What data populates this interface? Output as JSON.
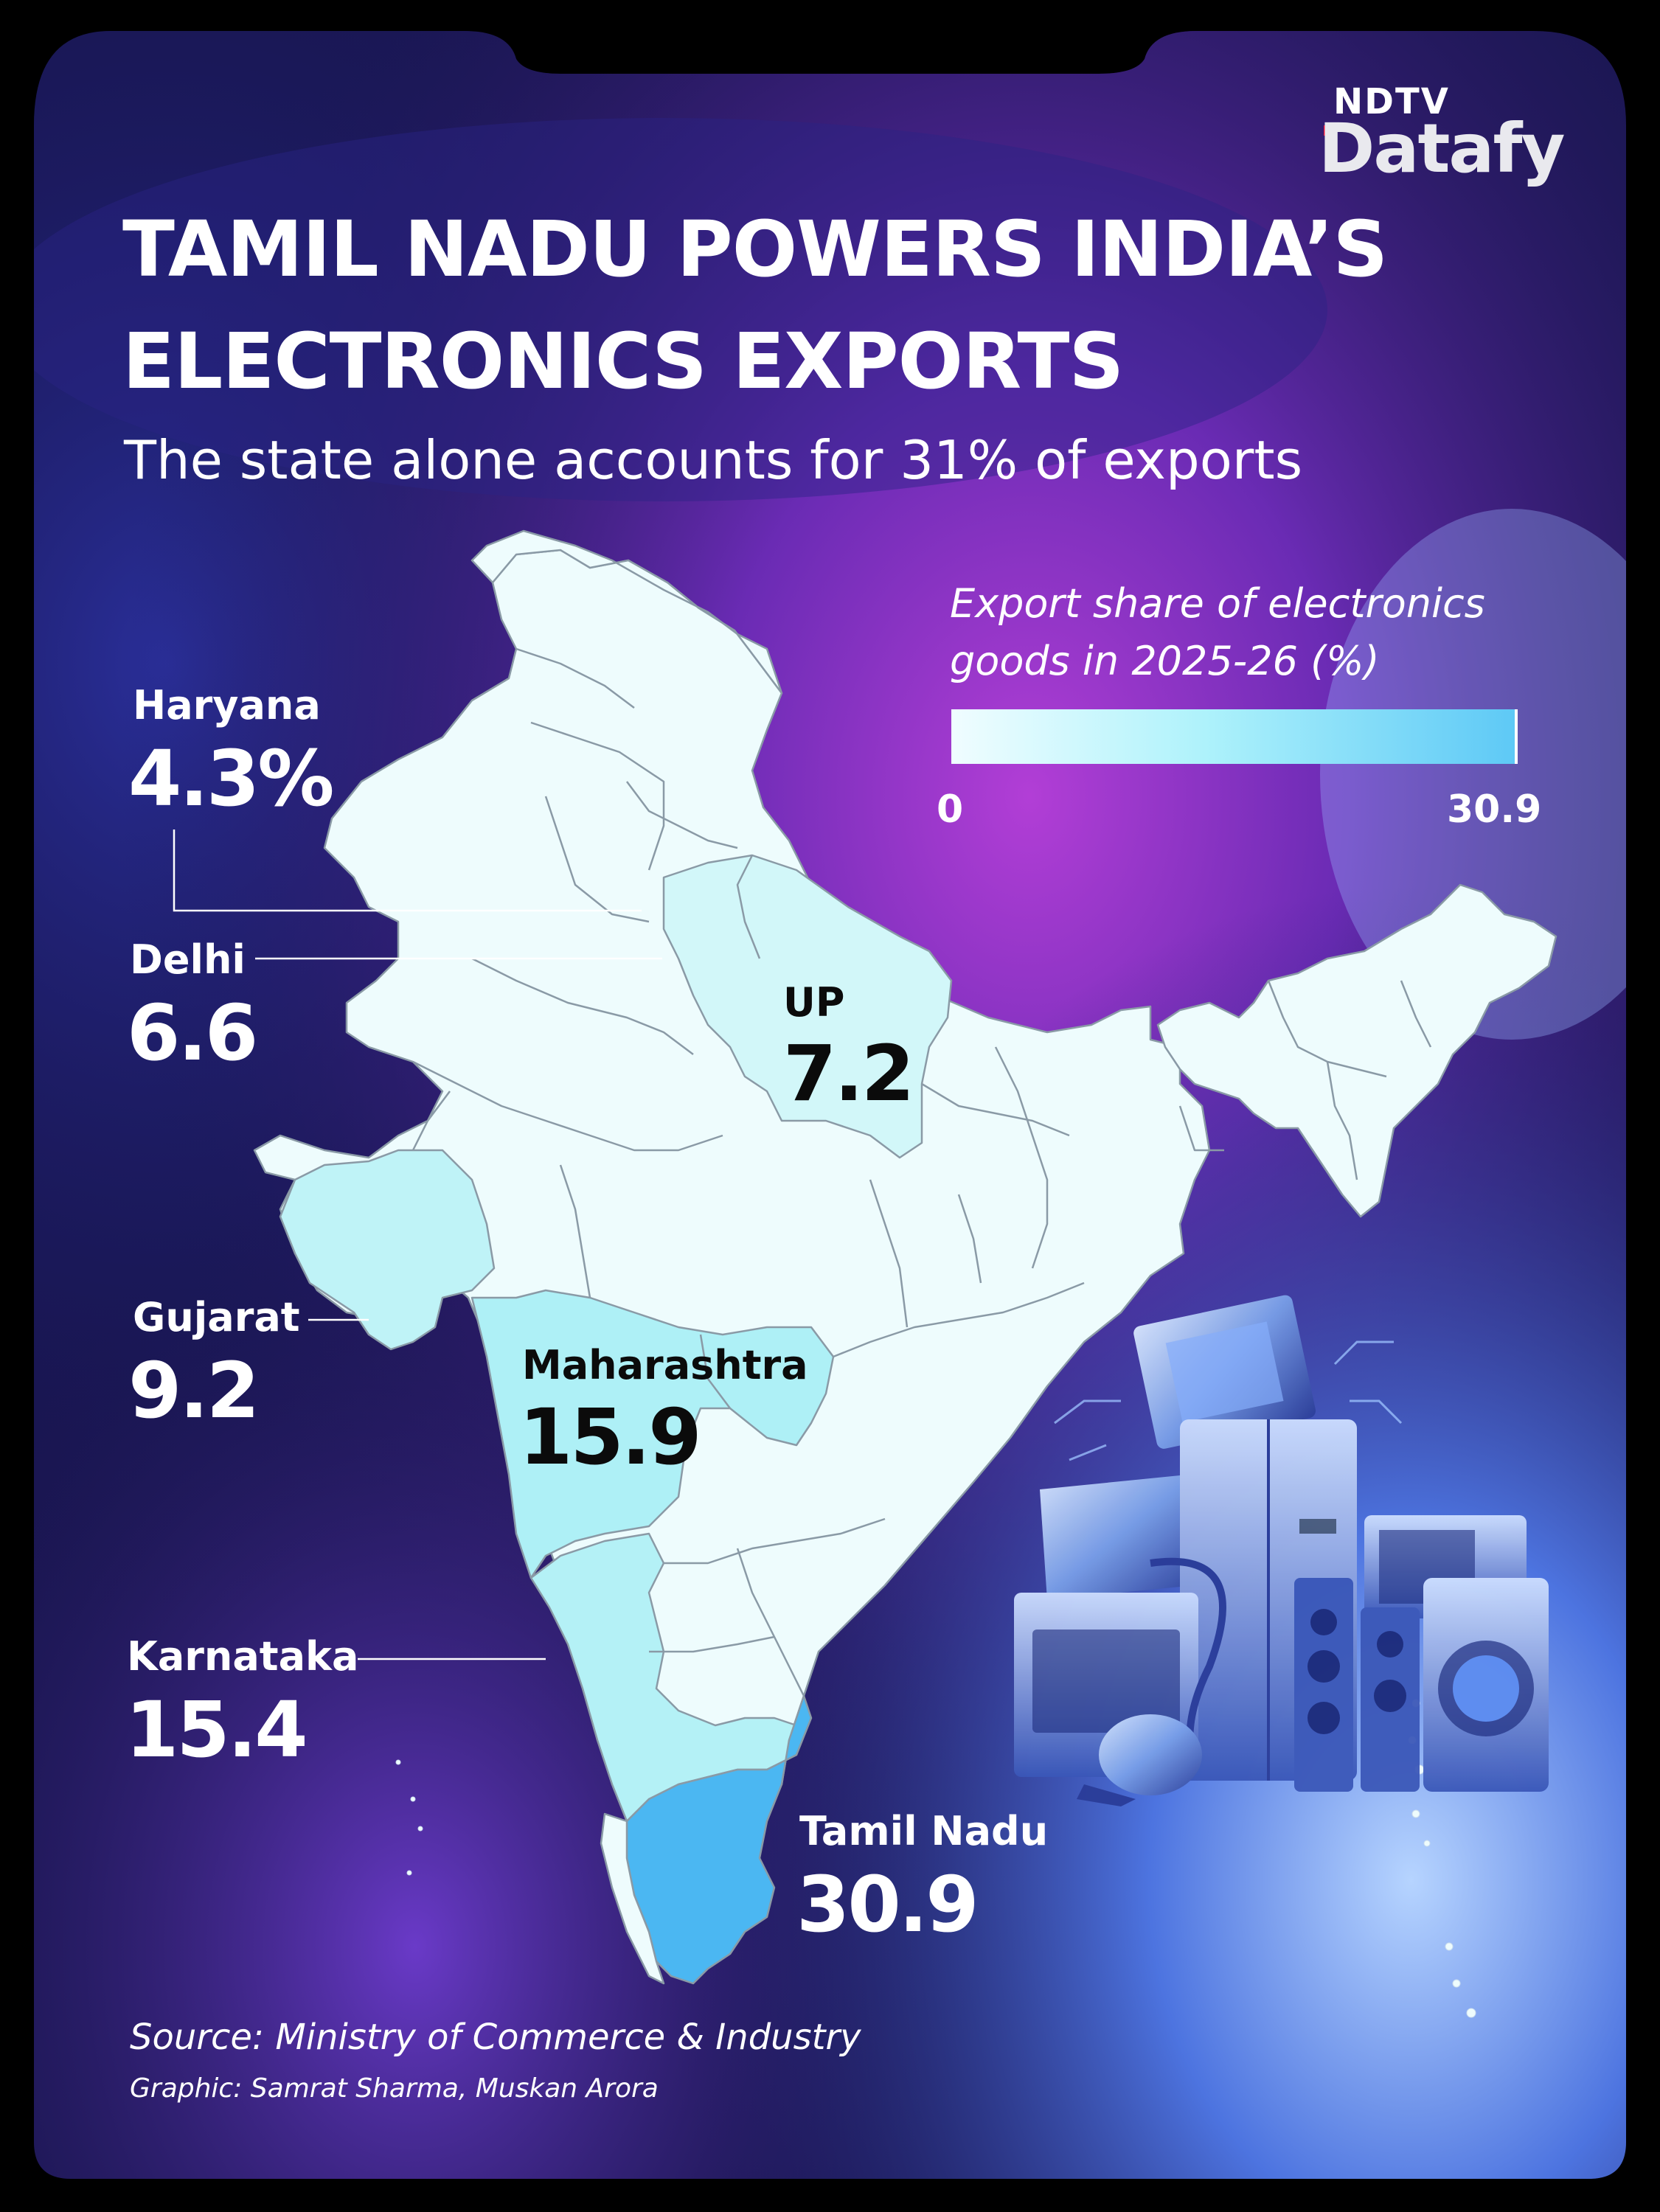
{
  "brand": {
    "top": "NDTV",
    "main": "Datafy"
  },
  "title_lines": [
    "TAMIL NADU POWERS INDIA’S",
    "ELECTRONICS EXPORTS"
  ],
  "subtitle": "The state alone accounts for 31% of exports",
  "legend": {
    "title": "Export share of electronics goods in 2025-26 (%)",
    "min": "0",
    "max": "30.9",
    "color_min": "#f0fdff",
    "color_max": "#5ec9f6"
  },
  "states": [
    {
      "name": "Haryana",
      "value": "4.3%"
    },
    {
      "name": "Delhi",
      "value": "6.6"
    },
    {
      "name": "UP",
      "value": "7.2"
    },
    {
      "name": "Gujarat",
      "value": "9.2"
    },
    {
      "name": "Maharashtra",
      "value": "15.9"
    },
    {
      "name": "Karnataka",
      "value": "15.4"
    },
    {
      "name": "Tamil Nadu",
      "value": "30.9"
    }
  ],
  "source": "Source: Ministry of Commerce & Industry",
  "credit": "Graphic: Samrat Sharma, Muskan Arora",
  "colors": {
    "background_frame": "#000000",
    "panel_dark": "#1a1550",
    "panel_purple": "#7a2fc2",
    "map_base": "#eefcfd",
    "map_border": "#8a9aa6",
    "tamil_nadu": "#4bb7f2",
    "maharashtra": "#aef0f6",
    "karnataka": "#b4f1f6",
    "gujarat": "#bff3f7",
    "up": "#d2f7f9",
    "brand_red": "#e8173c"
  }
}
